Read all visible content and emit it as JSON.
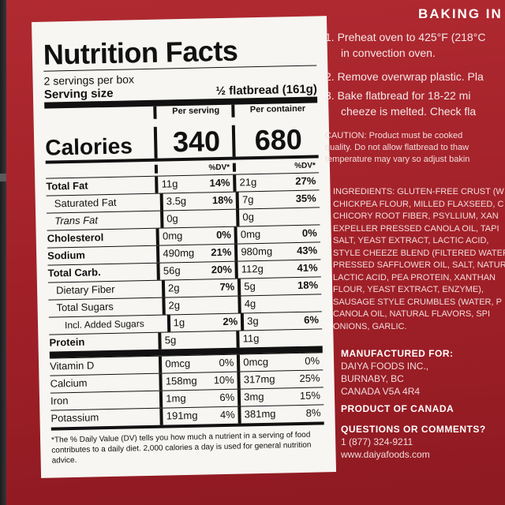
{
  "label": {
    "title": "Nutrition Facts",
    "servings": "2 servings per box",
    "serving_size_label": "Serving size",
    "serving_size_value": "½ flatbread (161g)",
    "per_serving": "Per serving",
    "per_container": "Per container",
    "calories_label": "Calories",
    "calories_serving": "340",
    "calories_container": "680",
    "dv_head": "%DV*",
    "rows": [
      {
        "label": "Total Fat",
        "s_amt": "11g",
        "s_dv": "14%",
        "c_amt": "21g",
        "c_dv": "27%"
      },
      {
        "label": "Saturated Fat",
        "s_amt": "3.5g",
        "s_dv": "18%",
        "c_amt": "7g",
        "c_dv": "35%"
      },
      {
        "label": "Trans Fat",
        "s_amt": "0g",
        "s_dv": "",
        "c_amt": "0g",
        "c_dv": ""
      },
      {
        "label": "Cholesterol",
        "s_amt": "0mg",
        "s_dv": "0%",
        "c_amt": "0mg",
        "c_dv": "0%"
      },
      {
        "label": "Sodium",
        "s_amt": "490mg",
        "s_dv": "21%",
        "c_amt": "980mg",
        "c_dv": "43%"
      },
      {
        "label": "Total Carb.",
        "s_amt": "56g",
        "s_dv": "20%",
        "c_amt": "112g",
        "c_dv": "41%"
      },
      {
        "label": "Dietary Fiber",
        "s_amt": "2g",
        "s_dv": "7%",
        "c_amt": "5g",
        "c_dv": "18%"
      },
      {
        "label": "Total Sugars",
        "s_amt": "2g",
        "s_dv": "",
        "c_amt": "4g",
        "c_dv": ""
      },
      {
        "label": "Incl. Added Sugars",
        "s_amt": "1g",
        "s_dv": "2%",
        "c_amt": "3g",
        "c_dv": "6%"
      },
      {
        "label": "Protein",
        "s_amt": "5g",
        "s_dv": "",
        "c_amt": "11g",
        "c_dv": ""
      }
    ],
    "vitamins": [
      {
        "label": "Vitamin D",
        "s_amt": "0mcg",
        "s_dv": "0%",
        "c_amt": "0mcg",
        "c_dv": "0%"
      },
      {
        "label": "Calcium",
        "s_amt": "158mg",
        "s_dv": "10%",
        "c_amt": "317mg",
        "c_dv": "25%"
      },
      {
        "label": "Iron",
        "s_amt": "1mg",
        "s_dv": "6%",
        "c_amt": "3mg",
        "c_dv": "15%"
      },
      {
        "label": "Potassium",
        "s_amt": "191mg",
        "s_dv": "4%",
        "c_amt": "381mg",
        "c_dv": "8%"
      }
    ],
    "footnote": "*The % Daily Value (DV) tells you how much a nutrient in a serving of food contributes to a daily diet. 2,000 calories a day is used for general nutrition advice."
  },
  "baking": {
    "heading": "BAKING IN",
    "step1a": "1. Preheat oven to 425°F (218°C",
    "step1b": "in convection oven.",
    "step2": "2. Remove overwrap plastic. Pla",
    "step3a": "3. Bake flatbread for 18-22 mi",
    "step3b": "cheeze is melted. Check fla",
    "caution1": "CAUTION: Product must be cooked",
    "caution2": "quality. Do not allow flatbread to thaw",
    "caution3": "temperature may vary so adjust bakin"
  },
  "ingredients": [
    "INGREDIENTS: GLUTEN-FREE CRUST (W",
    "CHICKPEA FLOUR, MILLED FLAXSEED, C",
    "CHICORY ROOT FIBER, PSYLLIUM, XAN",
    "EXPELLER PRESSED CANOLA OIL, TAPI",
    "SALT, YEAST EXTRACT, LACTIC ACID,",
    "STYLE CHEEZE BLEND (FILTERED WATER,",
    "PRESSED SAFFLOWER OIL, SALT, NATUR",
    "LACTIC ACID, PEA PROTEIN, XANTHAN",
    "FLOUR, YEAST EXTRACT, ENZYME),",
    "SAUSAGE STYLE CRUMBLES (WATER, P",
    "CANOLA OIL, NATURAL FLAVORS, SPI",
    "ONIONS, GARLIC."
  ],
  "mfg": {
    "heading": "MANUFACTURED FOR:",
    "line1": "DAIYA FOODS INC.,",
    "line2": "BURNABY, BC",
    "line3": "CANADA V5A 4R4",
    "origin": "PRODUCT OF CANADA",
    "questions": "QUESTIONS OR COMMENTS?",
    "phone": "1 (877) 324-9211",
    "web": "www.daiyafoods.com"
  }
}
